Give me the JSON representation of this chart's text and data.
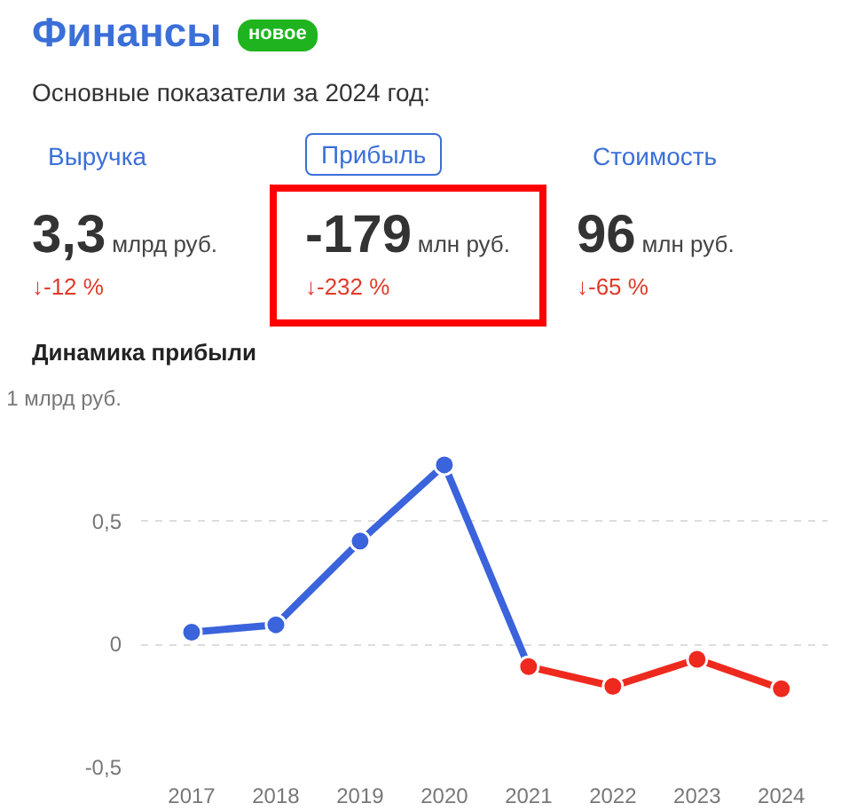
{
  "chart_data": {
    "type": "line",
    "title": "Финансы",
    "subtitle": "Основные показатели за 2024 год:",
    "annotations": [
      "новое",
      "Выручка",
      "Прибыль",
      "Стоимость",
      "3,3",
      "млрд руб.",
      "↓-12 %",
      "-179",
      "млн руб.",
      "↓-232 %",
      "96",
      "млн руб.",
      "↓-65 %",
      "Динамика прибыли"
    ],
    "categories": [
      "2017",
      "2018",
      "2019",
      "2020",
      "2021",
      "2022",
      "2023",
      "2024"
    ],
    "series": [
      {
        "color": "#3a63dc",
        "values": [
          0.05,
          0.08,
          0.42,
          0.73,
          -0.09,
          null,
          null,
          null
        ]
      },
      {
        "color": "#ee2a1e",
        "values": [
          null,
          null,
          null,
          null,
          -0.09,
          -0.17,
          -0.06,
          -0.18
        ]
      }
    ],
    "ylim": [
      -0.5,
      1
    ],
    "yticks": [
      {
        "value": -0.5,
        "label": "-0,5"
      },
      0,
      {
        "value": 0.5,
        "label": "0,5"
      },
      {
        "value": 1,
        "label": "1 млрд руб."
      }
    ],
    "grid": "y",
    "marker": "circle",
    "line_style": "solid"
  }
}
